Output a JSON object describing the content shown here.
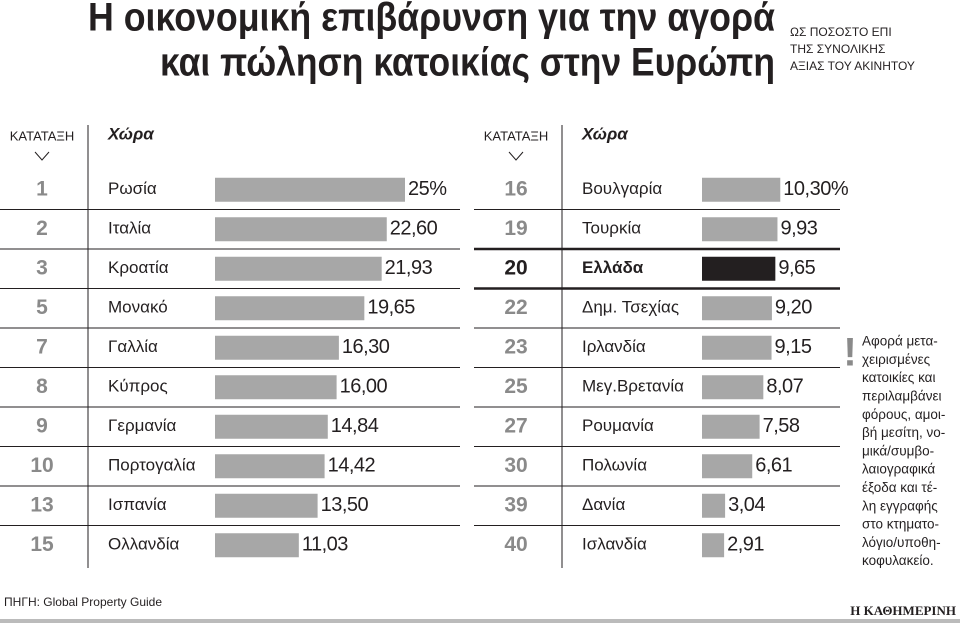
{
  "title_lines": [
    "Η οικονομική επιβάρυνση για την αγορά",
    "και πώληση κατοικίας στην Ευρώπη"
  ],
  "subtitle_lines": [
    "ΩΣ ΠΟΣΟΣΤΟ ΕΠΙ",
    "ΤΗΣ ΣΥΝΟΛΙΚΗΣ",
    "ΑΞΙΑΣ ΤΟΥ ΑΚΙΝΗΤΟΥ"
  ],
  "note_lines": [
    "Αφορά μετα-",
    "χειρισμένες",
    "κατοικίες και",
    "περιλαμβάνει",
    "φόρους, αμοι-",
    "βή μεσίτη, νο-",
    "μικά/συμβο-",
    "λαιογραφικά",
    "έξοδα και τέ-",
    "λη εγγραφής",
    "στο κτηματο-",
    "λόγιο/υποθη-",
    "κοφυλακείο."
  ],
  "source": "ΠΗΓΗ: Global Property Guide",
  "publisher": "Η ΚΑΘΗΜΕΡΙΝΗ",
  "chart_data": [
    {
      "type": "bar",
      "orientation": "horizontal",
      "rank_header": "ΚΑΤΑΤΑΞΗ",
      "category_header": "Χώρα",
      "ranks": [
        "1",
        "2",
        "3",
        "5",
        "7",
        "8",
        "9",
        "10",
        "13",
        "15"
      ],
      "categories": [
        "Ρωσία",
        "Ιταλία",
        "Κροατία",
        "Μονακό",
        "Γαλλία",
        "Κύπρος",
        "Γερμανία",
        "Πορτογαλία",
        "Ισπανία",
        "Ολλανδία"
      ],
      "values": [
        25,
        22.6,
        21.93,
        19.65,
        16.3,
        16.0,
        14.84,
        14.42,
        13.5,
        11.03
      ],
      "value_labels": [
        "25%",
        "22,60",
        "21,93",
        "19,65",
        "16,30",
        "16,00",
        "14,84",
        "14,42",
        "13,50",
        "11,03"
      ],
      "colors": [
        "#a7a7a7",
        "#a7a7a7",
        "#a7a7a7",
        "#a7a7a7",
        "#a7a7a7",
        "#a7a7a7",
        "#a7a7a7",
        "#a7a7a7",
        "#a7a7a7",
        "#a7a7a7"
      ]
    },
    {
      "type": "bar",
      "orientation": "horizontal",
      "rank_header": "ΚΑΤΑΤΑΞΗ",
      "category_header": "Χώρα",
      "ranks": [
        "16",
        "19",
        "20",
        "22",
        "23",
        "25",
        "27",
        "30",
        "39",
        "40"
      ],
      "categories": [
        "Βουλγαρία",
        "Τουρκία",
        "Ελλάδα",
        "Δημ. Τσεχίας",
        "Ιρλανδία",
        "Μεγ.Βρετανία",
        "Ρουμανία",
        "Πολωνία",
        "Δανία",
        "Ισλανδία"
      ],
      "values": [
        10.3,
        9.93,
        9.65,
        9.2,
        9.15,
        8.07,
        7.58,
        6.61,
        3.04,
        2.91
      ],
      "value_labels": [
        "10,30%",
        "9,93",
        "9,65",
        "9,20",
        "9,15",
        "8,07",
        "7,58",
        "6,61",
        "3,04",
        "2,91"
      ],
      "colors": [
        "#a7a7a7",
        "#a7a7a7",
        "#231f20",
        "#a7a7a7",
        "#a7a7a7",
        "#a7a7a7",
        "#a7a7a7",
        "#a7a7a7",
        "#a7a7a7",
        "#a7a7a7"
      ],
      "highlight": 2
    }
  ]
}
